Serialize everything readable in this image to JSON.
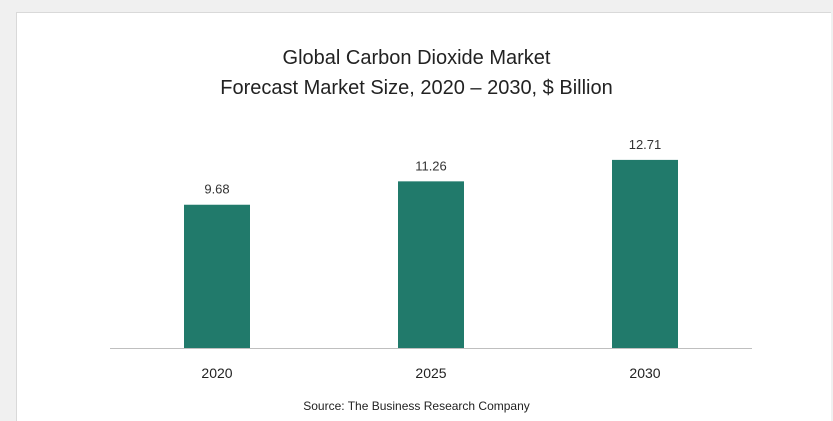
{
  "chart_data": {
    "type": "bar",
    "title": "Global Carbon Dioxide Market",
    "subtitle": "Forecast Market Size, 2020 – 2030, $ Billion",
    "categories": [
      "2020",
      "2025",
      "2030"
    ],
    "values": [
      9.68,
      11.26,
      12.71
    ],
    "value_labels": [
      "9.68",
      "11.26",
      "12.71"
    ],
    "xlabel": "",
    "ylabel": "",
    "ylim": [
      0,
      14
    ],
    "grid": false,
    "legend": "none",
    "bar_color": "#217a6b",
    "axis_color": "#bfbfbf"
  },
  "source": "Source: The Business Research Company"
}
